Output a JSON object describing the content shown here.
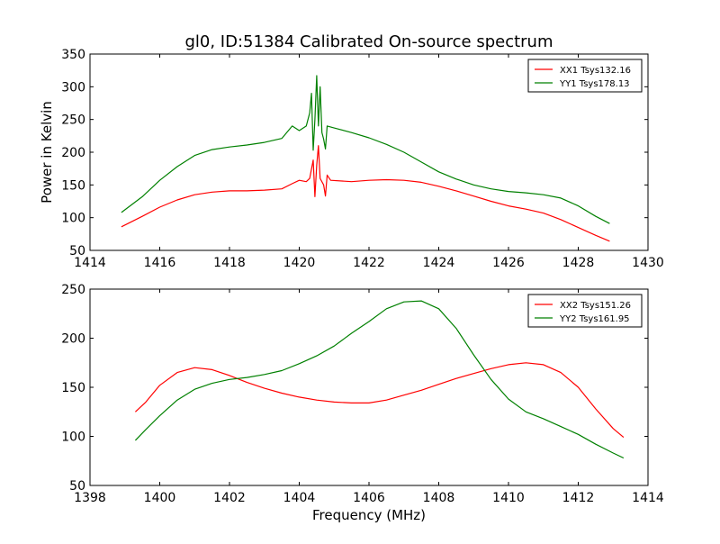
{
  "figure": {
    "title": "gl0, ID:51384 Calibrated On-source spectrum",
    "xlabel": "Frequency (MHz)",
    "ylabel": "Power in Kelvin"
  },
  "chart_data": [
    {
      "type": "line",
      "title": "gl0, ID:51384 Calibrated On-source spectrum",
      "xlabel": "",
      "ylabel": "Power in Kelvin",
      "xlim": [
        1414,
        1430
      ],
      "ylim": [
        50,
        350
      ],
      "xticks": [
        "1414",
        "1416",
        "1418",
        "1420",
        "1422",
        "1424",
        "1426",
        "1428",
        "1430"
      ],
      "yticks": [
        "50",
        "100",
        "150",
        "200",
        "250",
        "300",
        "350"
      ],
      "grid": false,
      "legend_position": "top-right",
      "series": [
        {
          "name": "XX1 Tsys132.16",
          "color": "#ff0000",
          "points": [
            [
              1414.9,
              86
            ],
            [
              1415.5,
              102
            ],
            [
              1416.0,
              116
            ],
            [
              1416.5,
              127
            ],
            [
              1417.0,
              135
            ],
            [
              1417.5,
              139
            ],
            [
              1418.0,
              141
            ],
            [
              1418.5,
              141
            ],
            [
              1419.0,
              142
            ],
            [
              1419.5,
              144
            ],
            [
              1419.8,
              152
            ],
            [
              1420.0,
              157
            ],
            [
              1420.2,
              155
            ],
            [
              1420.3,
              160
            ],
            [
              1420.4,
              188
            ],
            [
              1420.45,
              132
            ],
            [
              1420.5,
              180
            ],
            [
              1420.55,
              210
            ],
            [
              1420.6,
              160
            ],
            [
              1420.7,
              150
            ],
            [
              1420.75,
              133
            ],
            [
              1420.8,
              165
            ],
            [
              1420.9,
              157
            ],
            [
              1421.5,
              155
            ],
            [
              1422.0,
              157
            ],
            [
              1422.5,
              158
            ],
            [
              1423.0,
              157
            ],
            [
              1423.5,
              154
            ],
            [
              1424.0,
              148
            ],
            [
              1424.5,
              141
            ],
            [
              1425.0,
              133
            ],
            [
              1425.5,
              125
            ],
            [
              1426.0,
              118
            ],
            [
              1426.5,
              113
            ],
            [
              1427.0,
              107
            ],
            [
              1427.5,
              97
            ],
            [
              1428.0,
              85
            ],
            [
              1428.5,
              73
            ],
            [
              1428.9,
              64
            ]
          ]
        },
        {
          "name": "YY1 Tsys178.13",
          "color": "#008000",
          "points": [
            [
              1414.9,
              108
            ],
            [
              1415.5,
              132
            ],
            [
              1416.0,
              157
            ],
            [
              1416.5,
              178
            ],
            [
              1417.0,
              195
            ],
            [
              1417.5,
              204
            ],
            [
              1418.0,
              208
            ],
            [
              1418.5,
              211
            ],
            [
              1419.0,
              215
            ],
            [
              1419.5,
              221
            ],
            [
              1419.8,
              240
            ],
            [
              1420.0,
              233
            ],
            [
              1420.2,
              240
            ],
            [
              1420.3,
              260
            ],
            [
              1420.35,
              290
            ],
            [
              1420.4,
              203
            ],
            [
              1420.45,
              250
            ],
            [
              1420.5,
              317
            ],
            [
              1420.55,
              240
            ],
            [
              1420.6,
              300
            ],
            [
              1420.65,
              230
            ],
            [
              1420.7,
              220
            ],
            [
              1420.75,
              205
            ],
            [
              1420.8,
              240
            ],
            [
              1421.0,
              237
            ],
            [
              1421.5,
              230
            ],
            [
              1422.0,
              222
            ],
            [
              1422.5,
              212
            ],
            [
              1423.0,
              200
            ],
            [
              1423.5,
              185
            ],
            [
              1424.0,
              170
            ],
            [
              1424.5,
              159
            ],
            [
              1425.0,
              150
            ],
            [
              1425.5,
              144
            ],
            [
              1426.0,
              140
            ],
            [
              1426.5,
              138
            ],
            [
              1427.0,
              135
            ],
            [
              1427.5,
              130
            ],
            [
              1428.0,
              118
            ],
            [
              1428.5,
              102
            ],
            [
              1428.9,
              91
            ]
          ]
        }
      ]
    },
    {
      "type": "line",
      "title": "",
      "xlabel": "Frequency (MHz)",
      "ylabel": "",
      "xlim": [
        1398,
        1414
      ],
      "ylim": [
        50,
        250
      ],
      "xticks": [
        "1398",
        "1400",
        "1402",
        "1404",
        "1406",
        "1408",
        "1410",
        "1412",
        "1414"
      ],
      "yticks": [
        "50",
        "100",
        "150",
        "200",
        "250"
      ],
      "grid": false,
      "legend_position": "top-right",
      "series": [
        {
          "name": "XX2 Tsys151.26",
          "color": "#ff0000",
          "points": [
            [
              1399.3,
              125
            ],
            [
              1399.6,
              135
            ],
            [
              1400.0,
              152
            ],
            [
              1400.5,
              165
            ],
            [
              1401.0,
              170
            ],
            [
              1401.5,
              168
            ],
            [
              1402.0,
              162
            ],
            [
              1402.5,
              155
            ],
            [
              1403.0,
              149
            ],
            [
              1403.5,
              144
            ],
            [
              1404.0,
              140
            ],
            [
              1404.5,
              137
            ],
            [
              1405.0,
              135
            ],
            [
              1405.5,
              134
            ],
            [
              1406.0,
              134
            ],
            [
              1406.5,
              137
            ],
            [
              1407.0,
              142
            ],
            [
              1407.5,
              147
            ],
            [
              1408.0,
              153
            ],
            [
              1408.5,
              159
            ],
            [
              1409.0,
              164
            ],
            [
              1409.5,
              169
            ],
            [
              1410.0,
              173
            ],
            [
              1410.5,
              175
            ],
            [
              1411.0,
              173
            ],
            [
              1411.5,
              165
            ],
            [
              1412.0,
              150
            ],
            [
              1412.5,
              128
            ],
            [
              1413.0,
              108
            ],
            [
              1413.3,
              99
            ]
          ]
        },
        {
          "name": "YY2 Tsys161.95",
          "color": "#008000",
          "points": [
            [
              1399.3,
              96
            ],
            [
              1399.6,
              107
            ],
            [
              1400.0,
              121
            ],
            [
              1400.5,
              137
            ],
            [
              1401.0,
              148
            ],
            [
              1401.5,
              154
            ],
            [
              1402.0,
              158
            ],
            [
              1402.5,
              160
            ],
            [
              1403.0,
              163
            ],
            [
              1403.5,
              167
            ],
            [
              1404.0,
              174
            ],
            [
              1404.5,
              182
            ],
            [
              1405.0,
              192
            ],
            [
              1405.5,
              205
            ],
            [
              1406.0,
              217
            ],
            [
              1406.5,
              230
            ],
            [
              1407.0,
              237
            ],
            [
              1407.5,
              238
            ],
            [
              1408.0,
              230
            ],
            [
              1408.5,
              210
            ],
            [
              1409.0,
              183
            ],
            [
              1409.5,
              158
            ],
            [
              1410.0,
              138
            ],
            [
              1410.5,
              125
            ],
            [
              1411.0,
              118
            ],
            [
              1411.5,
              110
            ],
            [
              1412.0,
              102
            ],
            [
              1412.5,
              92
            ],
            [
              1413.0,
              83
            ],
            [
              1413.3,
              78
            ]
          ]
        }
      ]
    }
  ]
}
